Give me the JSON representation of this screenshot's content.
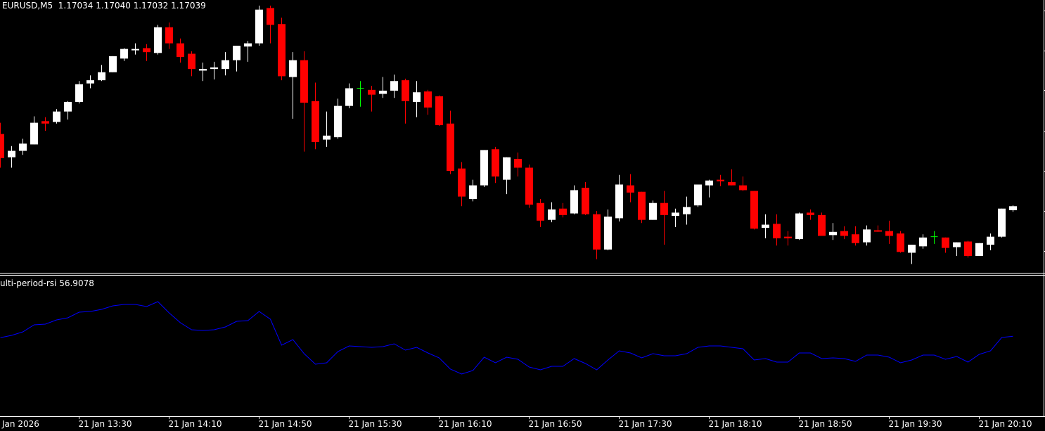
{
  "header": {
    "symbol": "EURUSD,M5",
    "ohlc_text": "1.17034 1.17040 1.17032 1.17039"
  },
  "indicator": {
    "label": "ulti-period-rsi",
    "value": "56.9078"
  },
  "colors": {
    "background": "#000000",
    "bull_candle": "#ffffff",
    "bear_candle": "#ff0000",
    "doji_candle": "#00ff00",
    "rsi_line": "#0000ff",
    "grid_lines": "#ffffff"
  },
  "chart_data": [
    {
      "type": "candlestick",
      "ylim": [
        1.16956,
        1.17296
      ],
      "grid": false,
      "date_label": "Jan 2026",
      "x_ticks": [
        {
          "at": "13:30",
          "label": "21 Jan 13:30"
        },
        {
          "at": "14:10",
          "label": "21 Jan 14:10"
        },
        {
          "at": "14:50",
          "label": "21 Jan 14:50"
        },
        {
          "at": "15:30",
          "label": "21 Jan 15:30"
        },
        {
          "at": "16:10",
          "label": "21 Jan 16:10"
        },
        {
          "at": "16:50",
          "label": "21 Jan 16:50"
        },
        {
          "at": "17:30",
          "label": "21 Jan 17:30"
        },
        {
          "at": "18:10",
          "label": "21 Jan 18:10"
        },
        {
          "at": "18:50",
          "label": "21 Jan 18:50"
        },
        {
          "at": "19:30",
          "label": "21 Jan 19:30"
        },
        {
          "at": "20:10",
          "label": "21 Jan 20:10"
        }
      ],
      "categories": [
        "12:55",
        "13:00",
        "13:05",
        "13:10",
        "13:15",
        "13:20",
        "13:25",
        "13:30",
        "13:35",
        "13:40",
        "13:45",
        "13:50",
        "13:55",
        "14:00",
        "14:05",
        "14:10",
        "14:15",
        "14:20",
        "14:25",
        "14:30",
        "14:35",
        "14:40",
        "14:45",
        "14:50",
        "14:55",
        "15:00",
        "15:05",
        "15:10",
        "15:15",
        "15:20",
        "15:25",
        "15:30",
        "15:35",
        "15:40",
        "15:45",
        "15:50",
        "15:55",
        "16:00",
        "16:05",
        "16:10",
        "16:15",
        "16:20",
        "16:25",
        "16:30",
        "16:35",
        "16:40",
        "16:45",
        "16:50",
        "16:55",
        "17:00",
        "17:05",
        "17:10",
        "17:15",
        "17:20",
        "17:25",
        "17:30",
        "17:35",
        "17:40",
        "17:45",
        "17:50",
        "17:55",
        "18:00",
        "18:05",
        "18:10",
        "18:15",
        "18:20",
        "18:25",
        "18:30",
        "18:35",
        "18:40",
        "18:45",
        "18:50",
        "18:55",
        "19:00",
        "19:05",
        "19:10",
        "19:15",
        "19:20",
        "19:25",
        "19:30",
        "19:35",
        "19:40",
        "19:45",
        "19:50",
        "19:55",
        "20:00",
        "20:05",
        "20:10",
        "20:15",
        "20:20",
        "20:25"
      ],
      "ohlc": [
        [
          1.17129,
          1.17143,
          1.17087,
          1.17099
        ],
        [
          1.171,
          1.17114,
          1.17087,
          1.17108
        ],
        [
          1.17108,
          1.17123,
          1.17103,
          1.17117
        ],
        [
          1.17116,
          1.17151,
          1.17116,
          1.17143
        ],
        [
          1.17145,
          1.1715,
          1.17133,
          1.17142
        ],
        [
          1.17144,
          1.1716,
          1.17142,
          1.17157
        ],
        [
          1.17157,
          1.1717,
          1.17147,
          1.17169
        ],
        [
          1.17169,
          1.17195,
          1.17167,
          1.17191
        ],
        [
          1.17192,
          1.17202,
          1.17186,
          1.17196
        ],
        [
          1.17196,
          1.17215,
          1.17195,
          1.17206
        ],
        [
          1.17206,
          1.17226,
          1.17206,
          1.17226
        ],
        [
          1.17223,
          1.17236,
          1.1722,
          1.17235
        ],
        [
          1.17234,
          1.17242,
          1.17228,
          1.17235
        ],
        [
          1.17236,
          1.17241,
          1.1722,
          1.17231
        ],
        [
          1.1723,
          1.17265,
          1.17228,
          1.17262
        ],
        [
          1.17262,
          1.17268,
          1.17235,
          1.17242
        ],
        [
          1.17242,
          1.17248,
          1.17218,
          1.17225
        ],
        [
          1.17229,
          1.17232,
          1.17201,
          1.1721
        ],
        [
          1.17208,
          1.17218,
          1.17195,
          1.1721
        ],
        [
          1.1721,
          1.17219,
          1.17197,
          1.17212
        ],
        [
          1.1721,
          1.17231,
          1.17202,
          1.17221
        ],
        [
          1.17221,
          1.17239,
          1.17207,
          1.17239
        ],
        [
          1.17238,
          1.17245,
          1.17219,
          1.17242
        ],
        [
          1.17242,
          1.17289,
          1.17239,
          1.17284
        ],
        [
          1.17286,
          1.17289,
          1.17242,
          1.17265
        ],
        [
          1.17266,
          1.17274,
          1.17196,
          1.17201
        ],
        [
          1.172,
          1.17231,
          1.17148,
          1.17221
        ],
        [
          1.17221,
          1.17232,
          1.17107,
          1.17168
        ],
        [
          1.1717,
          1.17193,
          1.1711,
          1.17119
        ],
        [
          1.17122,
          1.17157,
          1.17113,
          1.17127
        ],
        [
          1.17125,
          1.17173,
          1.17123,
          1.17164
        ],
        [
          1.17164,
          1.17192,
          1.17161,
          1.17186
        ],
        [
          1.17186,
          1.17195,
          1.17163,
          1.17186
        ],
        [
          1.17184,
          1.17189,
          1.17157,
          1.17178
        ],
        [
          1.17179,
          1.172,
          1.17174,
          1.17183
        ],
        [
          1.17183,
          1.17203,
          1.17174,
          1.17195
        ],
        [
          1.17196,
          1.17198,
          1.17142,
          1.1717
        ],
        [
          1.17169,
          1.17195,
          1.1715,
          1.17181
        ],
        [
          1.17182,
          1.17184,
          1.17153,
          1.17162
        ],
        [
          1.17176,
          1.17177,
          1.17139,
          1.1714
        ],
        [
          1.17142,
          1.17158,
          1.17079,
          1.17083
        ],
        [
          1.17086,
          1.17094,
          1.17039,
          1.17051
        ],
        [
          1.17048,
          1.17072,
          1.17045,
          1.17065
        ],
        [
          1.17065,
          1.17109,
          1.17063,
          1.17109
        ],
        [
          1.1711,
          1.17113,
          1.17068,
          1.17076
        ],
        [
          1.17072,
          1.171,
          1.17054,
          1.171
        ],
        [
          1.17098,
          1.17106,
          1.17076,
          1.17087
        ],
        [
          1.17087,
          1.17091,
          1.17037,
          1.17041
        ],
        [
          1.17043,
          1.17048,
          1.17013,
          1.17021
        ],
        [
          1.17022,
          1.17044,
          1.17019,
          1.17035
        ],
        [
          1.17036,
          1.17043,
          1.17025,
          1.17028
        ],
        [
          1.1703,
          1.17065,
          1.17029,
          1.17059
        ],
        [
          1.17062,
          1.17069,
          1.17028,
          1.17029
        ],
        [
          1.17029,
          1.17033,
          1.16973,
          1.16985
        ],
        [
          1.16985,
          1.17035,
          1.16984,
          1.17026
        ],
        [
          1.17024,
          1.17078,
          1.1702,
          1.17066
        ],
        [
          1.17065,
          1.17079,
          1.17044,
          1.17056
        ],
        [
          1.17057,
          1.17057,
          1.17018,
          1.17022
        ],
        [
          1.17022,
          1.17046,
          1.17022,
          1.17043
        ],
        [
          1.17043,
          1.17058,
          1.16991,
          1.17028
        ],
        [
          1.17027,
          1.17036,
          1.17013,
          1.17031
        ],
        [
          1.17029,
          1.17051,
          1.17016,
          1.17038
        ],
        [
          1.1704,
          1.17066,
          1.17038,
          1.17066
        ],
        [
          1.17065,
          1.17072,
          1.1705,
          1.17071
        ],
        [
          1.17072,
          1.17078,
          1.17064,
          1.1707
        ],
        [
          1.17069,
          1.17085,
          1.17065,
          1.17065
        ],
        [
          1.17065,
          1.17076,
          1.17058,
          1.17059
        ],
        [
          1.17058,
          1.17058,
          1.1701,
          1.17011
        ],
        [
          1.17012,
          1.17029,
          1.16999,
          1.17016
        ],
        [
          1.17017,
          1.17029,
          1.1699,
          1.16999
        ],
        [
          1.17001,
          1.17008,
          1.1699,
          1.16999
        ],
        [
          1.16998,
          1.17031,
          1.16997,
          1.1703
        ],
        [
          1.17031,
          1.17035,
          1.17022,
          1.17028
        ],
        [
          1.17028,
          1.17031,
          1.17002,
          1.17002
        ],
        [
          1.17003,
          1.17018,
          1.16997,
          1.17007
        ],
        [
          1.17008,
          1.17014,
          1.16998,
          1.17002
        ],
        [
          1.17004,
          1.17014,
          1.1699,
          1.16993
        ],
        [
          1.16994,
          1.17015,
          1.1699,
          1.1701
        ],
        [
          1.17009,
          1.17015,
          1.17007,
          1.17008
        ],
        [
          1.17008,
          1.17021,
          1.16992,
          1.17002
        ],
        [
          1.17005,
          1.17008,
          1.16981,
          1.16982
        ],
        [
          1.16981,
          1.16991,
          1.16967,
          1.16991
        ],
        [
          1.16989,
          1.17004,
          1.16986,
          1.17
        ],
        [
          1.17001,
          1.17008,
          1.16992,
          1.17001
        ],
        [
          1.17,
          1.17,
          1.16981,
          1.16987
        ],
        [
          1.16988,
          1.16994,
          1.16977,
          1.16994
        ],
        [
          1.16995,
          1.16996,
          1.16975,
          1.16977
        ],
        [
          1.16977,
          1.16993,
          1.16977,
          1.16993
        ],
        [
          1.16991,
          1.17005,
          1.16984,
          1.17001
        ],
        [
          1.17001,
          1.17036,
          1.17,
          1.17036
        ],
        [
          1.17034,
          1.1704,
          1.17032,
          1.17039
        ]
      ]
    },
    {
      "type": "line",
      "ylim": [
        0,
        100
      ],
      "grid": false,
      "series": [
        {
          "name": "ulti-period-rsi",
          "values": [
            55.9,
            57.5,
            60,
            65,
            65.5,
            68.5,
            70,
            74,
            74.5,
            76,
            78.5,
            79.5,
            79.5,
            78,
            81.5,
            73.5,
            66.5,
            61.5,
            61,
            61.5,
            63.5,
            67.5,
            68,
            74.5,
            69,
            50.5,
            54.5,
            44.5,
            37,
            38,
            46,
            50,
            49.5,
            49,
            49.5,
            51.5,
            47,
            49,
            45,
            41.5,
            33.5,
            30,
            32.5,
            42,
            38,
            42,
            40.5,
            35,
            33,
            35.5,
            35.5,
            41,
            37.5,
            33,
            40,
            46.5,
            45,
            41.5,
            44.5,
            43,
            43,
            44.5,
            49,
            50,
            50,
            49,
            48,
            40,
            41,
            38.5,
            38.5,
            45,
            45,
            41,
            41.5,
            41,
            39,
            43.5,
            43.5,
            42,
            38,
            40,
            43.5,
            43.5,
            40.5,
            42.5,
            38.5,
            44,
            46.5,
            56,
            56.9078
          ]
        }
      ]
    }
  ]
}
